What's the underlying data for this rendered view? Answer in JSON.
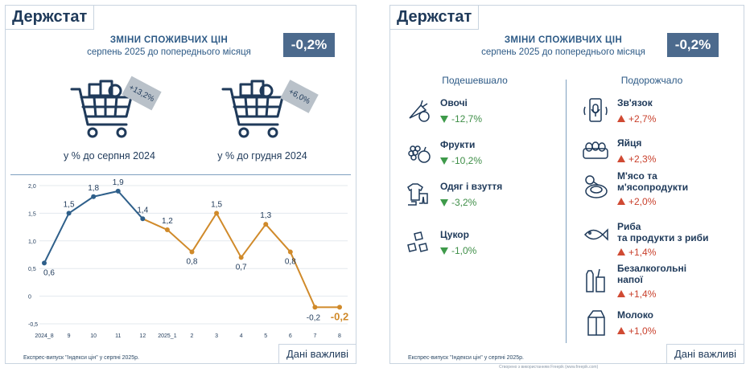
{
  "left_panel": {
    "logo": "Держстат",
    "title_line1": "ЗМІНИ СПОЖИВЧИХ ЦІН",
    "title_line2": "серпень 2025 до попереднього місяця",
    "badge": "-0,2%",
    "cart1": {
      "tag": "+13,2%",
      "label": "у % до серпня 2024"
    },
    "cart2": {
      "tag": "+6,0%",
      "label": "у % до грудня 2024"
    },
    "footer": "Експрес-випуск \"Індекси цін\" у серпні 2025р.",
    "button": "Дані важливі"
  },
  "right_panel": {
    "logo": "Держстат",
    "title_line1": "ЗМІНИ СПОЖИВЧИХ ЦІН",
    "title_line2": "серпень 2025 до попереднього місяця",
    "badge": "-0,2%",
    "cheaper_header": "Подешевшало",
    "pricier_header": "Подорожчало",
    "cheaper": [
      {
        "name": "Овочі",
        "value": "-12,7%",
        "icon": "vegetables-icon"
      },
      {
        "name": "Фрукти",
        "value": "-10,2%",
        "icon": "fruits-icon"
      },
      {
        "name": "Одяг і взуття",
        "value": "-3,2%",
        "icon": "clothes-icon"
      },
      {
        "name": "Цукор",
        "value": "-1,0%",
        "icon": "sugar-icon"
      }
    ],
    "pricier": [
      {
        "name_line1": "Зв'язок",
        "name_line2": "",
        "value": "+2,7%",
        "icon": "phone-icon"
      },
      {
        "name_line1": "Яйця",
        "name_line2": "",
        "value": "+2,3%",
        "icon": "eggs-icon"
      },
      {
        "name_line1": "М'ясо та",
        "name_line2": "м'ясопродукти",
        "value": "+2,0%",
        "icon": "meat-icon"
      },
      {
        "name_line1": "Риба",
        "name_line2": "та продукти з риби",
        "value": "+1,4%",
        "icon": "fish-icon"
      },
      {
        "name_line1": "Безалкогольні",
        "name_line2": "напої",
        "value": "+1,4%",
        "icon": "drinks-icon"
      },
      {
        "name_line1": "Молоко",
        "name_line2": "",
        "value": "+1,0%",
        "icon": "milk-icon"
      }
    ],
    "footer": "Експрес-випуск \"Індекси цін\" у серпні 2025р.",
    "button": "Дані важливі"
  },
  "credit": "Створено з використанням Freepik (www.freepik.com)",
  "chart_data": {
    "type": "line",
    "categories": [
      "2024_8",
      "9",
      "10",
      "11",
      "12",
      "2025_1",
      "2",
      "3",
      "4",
      "5",
      "6",
      "7",
      "8"
    ],
    "values": [
      0.6,
      1.5,
      1.8,
      1.9,
      1.4,
      1.2,
      0.8,
      1.5,
      0.7,
      1.3,
      0.8,
      -0.2,
      -0.2
    ],
    "data_labels": [
      "0,6",
      "1,5",
      "1,8",
      "1,9",
      "1,4",
      "1,2",
      "0,8",
      "1,5",
      "0,7",
      "1,3",
      "0,8",
      "-0,2",
      "-0,2"
    ],
    "y_ticks": [
      "-0,5",
      "0",
      "0,5",
      "1,0",
      "1,5",
      "2,0"
    ],
    "ylim": [
      -0.5,
      2.0
    ],
    "colors": {
      "2024": "#2e5f8a",
      "2025": "#d08a2a"
    },
    "grid": "horizontal"
  }
}
